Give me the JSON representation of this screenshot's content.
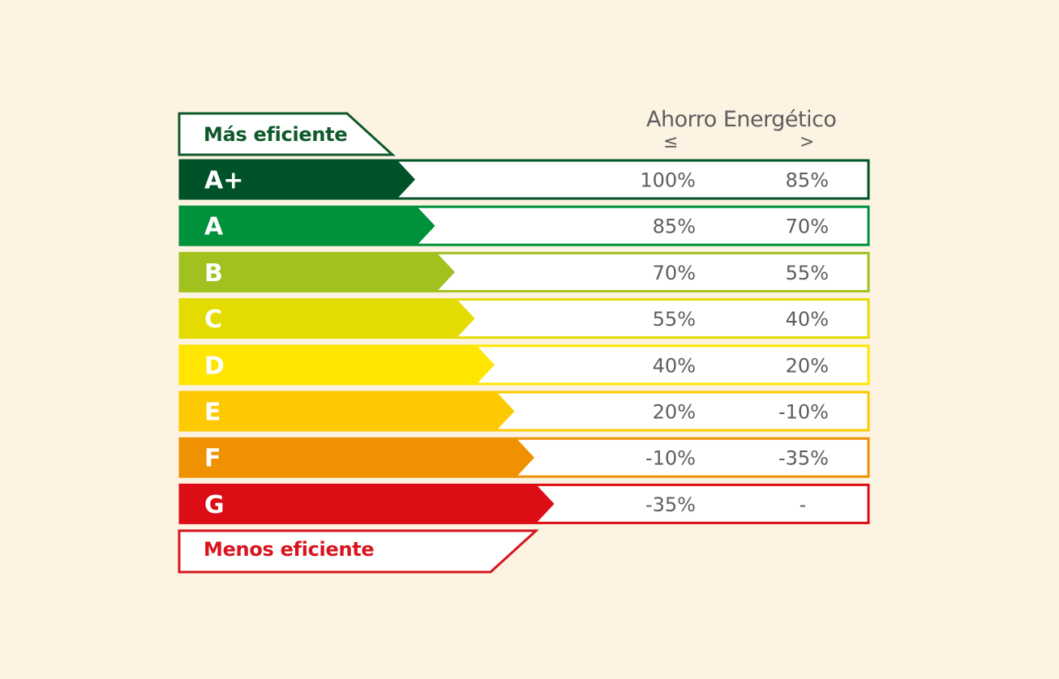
{
  "header": {
    "title": "Ahorro Energético",
    "col1": "≤",
    "col2": ">"
  },
  "labels": {
    "top": "Más eficiente",
    "bottom": "Menos eficiente"
  },
  "colors": {
    "background": "#fdf3e2",
    "top_flag": "#0e5a2a",
    "bottom_flag": "#d7151e",
    "value_text": "#5e5e5e"
  },
  "rows": [
    {
      "grade": "A+",
      "color": "#005228",
      "v1": "100%",
      "v2": "85%"
    },
    {
      "grade": "A",
      "color": "#00923b",
      "v1": "85%",
      "v2": "70%"
    },
    {
      "grade": "B",
      "color": "#a0c11e",
      "v1": "70%",
      "v2": "55%"
    },
    {
      "grade": "C",
      "color": "#e4dc00",
      "v1": "55%",
      "v2": "40%"
    },
    {
      "grade": "D",
      "color": "#ffe600",
      "v1": "40%",
      "v2": "20%"
    },
    {
      "grade": "E",
      "color": "#fdc900",
      "v1": "20%",
      "v2": "-10%"
    },
    {
      "grade": "F",
      "color": "#ef9100",
      "v1": "-10%",
      "v2": "-35%"
    },
    {
      "grade": "G",
      "color": "#dd0d15",
      "v1": "-35%",
      "v2": "-"
    }
  ]
}
